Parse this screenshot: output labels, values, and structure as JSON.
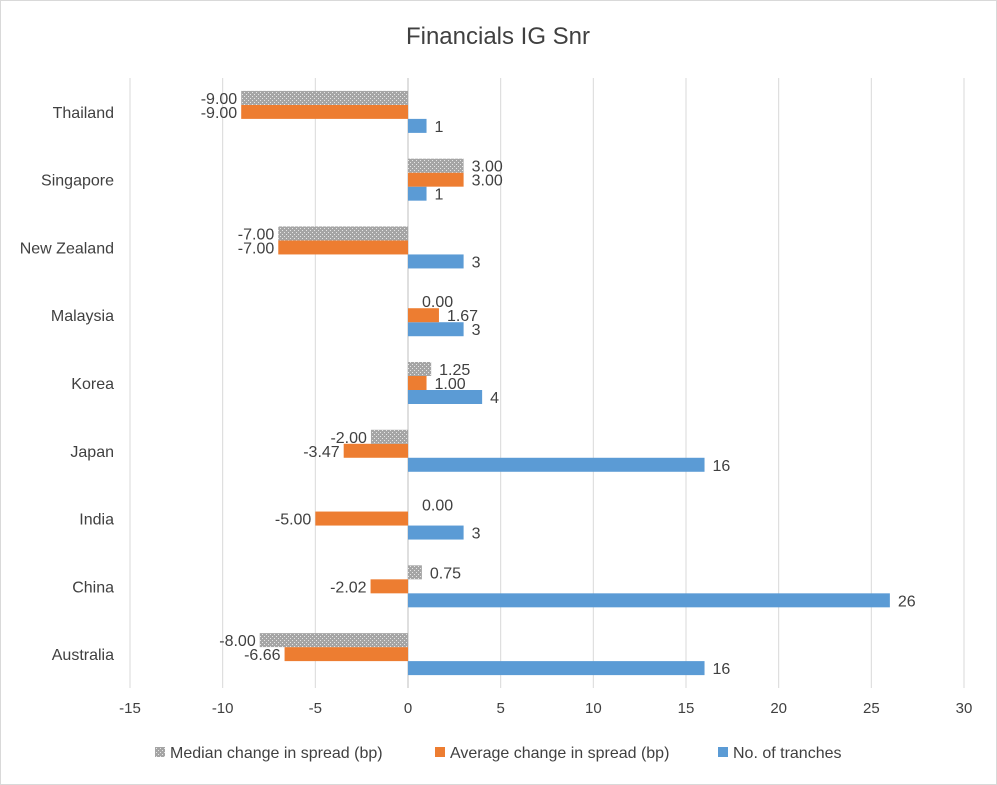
{
  "chart_data": {
    "type": "bar",
    "orientation": "horizontal",
    "title": "Financials IG Snr",
    "xlim": [
      -15,
      30
    ],
    "xticks": [
      -15,
      -10,
      -5,
      0,
      5,
      10,
      15,
      20,
      25,
      30
    ],
    "grid": "vertical",
    "legend_position": "bottom",
    "categories": [
      "Australia",
      "China",
      "India",
      "Japan",
      "Korea",
      "Malaysia",
      "New Zealand",
      "Singapore",
      "Thailand"
    ],
    "series": [
      {
        "name": "No. of tranches",
        "color": "#5b9bd5",
        "pattern": "solid",
        "values": [
          16,
          26,
          3,
          16,
          4,
          3,
          3,
          1,
          1
        ],
        "labels": [
          "16",
          "26",
          "3",
          "16",
          "4",
          "3",
          "3",
          "1",
          "1"
        ]
      },
      {
        "name": "Average change in spread (bp)",
        "color": "#ed7d31",
        "pattern": "solid",
        "values": [
          -6.66,
          -2.02,
          -5.0,
          -3.47,
          1.0,
          1.67,
          -7.0,
          3.0,
          -9.0
        ],
        "labels": [
          "-6.66",
          "-2.02",
          "-5.00",
          "-3.47",
          "1.00",
          "1.67",
          "-7.00",
          "3.00",
          "-9.00"
        ]
      },
      {
        "name": "Median change in spread (bp)",
        "color": "#a5a5a5",
        "pattern": "dotted",
        "values": [
          -8.0,
          0.75,
          0.0,
          -2.0,
          1.25,
          0.0,
          -7.0,
          3.0,
          -9.0
        ],
        "labels": [
          "-8.00",
          "0.75",
          "0.00",
          "-2.00",
          "1.25",
          "0.00",
          "-7.00",
          "3.00",
          "-9.00"
        ]
      }
    ],
    "legend_order": [
      "Median change in spread (bp)",
      "Average change in spread (bp)",
      "No. of tranches"
    ]
  }
}
